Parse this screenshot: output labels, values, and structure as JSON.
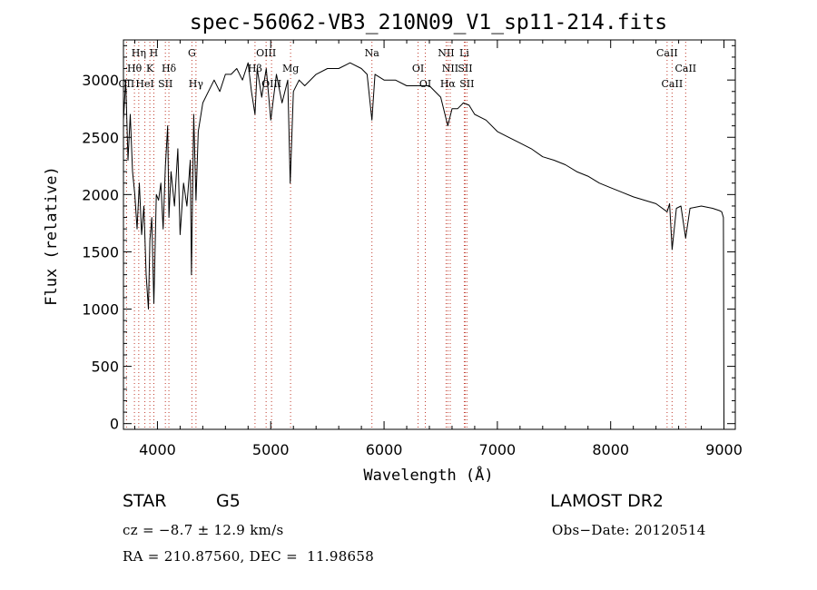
{
  "chart_data": {
    "type": "line",
    "title": "spec-56062-VB3_210N09_V1_sp11-214.fits",
    "xlabel": "Wavelength (Å)",
    "ylabel": "Flux (relative)",
    "xlim": [
      3700,
      9100
    ],
    "ylim": [
      -50,
      3350
    ],
    "x_ticks": [
      4000,
      5000,
      6000,
      7000,
      8000,
      9000
    ],
    "y_ticks": [
      0,
      500,
      1000,
      1500,
      2000,
      2500,
      3000
    ],
    "grid": false,
    "line_color": "#000000",
    "marker_color": "#c0392b",
    "series": [
      {
        "x": [
          3700,
          3720,
          3740,
          3760,
          3780,
          3800,
          3820,
          3840,
          3860,
          3880,
          3900,
          3920,
          3933,
          3950,
          3968,
          3990,
          4010,
          4030,
          4050,
          4070,
          4090,
          4101,
          4120,
          4150,
          4180,
          4200,
          4230,
          4260,
          4290,
          4300,
          4320,
          4340,
          4360,
          4400,
          4450,
          4500,
          4550,
          4600,
          4650,
          4700,
          4750,
          4800,
          4830,
          4861,
          4880,
          4920,
          4960,
          5000,
          5050,
          5100,
          5150,
          5172,
          5200,
          5250,
          5300,
          5400,
          5500,
          5600,
          5700,
          5800,
          5850,
          5893,
          5920,
          6000,
          6100,
          6200,
          6300,
          6400,
          6500,
          6563,
          6600,
          6650,
          6700,
          6750,
          6800,
          6900,
          7000,
          7100,
          7200,
          7300,
          7400,
          7500,
          7600,
          7700,
          7800,
          7900,
          8000,
          8100,
          8200,
          8300,
          8400,
          8498,
          8520,
          8542,
          8580,
          8620,
          8662,
          8700,
          8800,
          8900,
          8960,
          8980,
          8995,
          9000
        ],
        "y": [
          2650,
          3000,
          2300,
          2700,
          2200,
          2000,
          1700,
          2100,
          1650,
          1900,
          1300,
          1000,
          1600,
          1800,
          1050,
          2000,
          1950,
          2100,
          1700,
          2250,
          2600,
          1800,
          2200,
          1900,
          2400,
          1650,
          2100,
          1900,
          2300,
          1300,
          2700,
          1950,
          2550,
          2800,
          2900,
          3000,
          2900,
          3050,
          3050,
          3100,
          3000,
          3150,
          2900,
          2700,
          3100,
          2850,
          3100,
          2650,
          3050,
          2800,
          3000,
          2100,
          2900,
          3000,
          2950,
          3050,
          3100,
          3100,
          3150,
          3100,
          3050,
          2650,
          3050,
          3000,
          3000,
          2950,
          2950,
          2950,
          2850,
          2600,
          2750,
          2750,
          2800,
          2780,
          2700,
          2650,
          2550,
          2500,
          2450,
          2400,
          2330,
          2300,
          2260,
          2200,
          2160,
          2100,
          2060,
          2020,
          1980,
          1950,
          1920,
          1850,
          1920,
          1520,
          1880,
          1900,
          1620,
          1880,
          1900,
          1880,
          1860,
          1850,
          1800,
          0
        ]
      }
    ],
    "line_markers": [
      {
        "label": "Hη",
        "x": 3835,
        "row": 1
      },
      {
        "label": "H",
        "x": 3968,
        "row": 1
      },
      {
        "label": "Hθ",
        "x": 3797,
        "row": 2
      },
      {
        "label": "K",
        "x": 3933,
        "row": 2
      },
      {
        "label": "Hδ",
        "x": 4101,
        "row": 2
      },
      {
        "label": "OII",
        "x": 3727,
        "row": 3
      },
      {
        "label": "HeI",
        "x": 3889,
        "row": 3
      },
      {
        "label": "SII",
        "x": 4070,
        "row": 3
      },
      {
        "label": "G",
        "x": 4304,
        "row": 1
      },
      {
        "label": "Hγ",
        "x": 4340,
        "row": 3
      },
      {
        "label": "OIII",
        "x": 4959,
        "row": 1
      },
      {
        "label": "Hβ",
        "x": 4861,
        "row": 2
      },
      {
        "label": "OIII",
        "x": 5007,
        "row": 3
      },
      {
        "label": "Mg",
        "x": 5175,
        "row": 2
      },
      {
        "label": "Na",
        "x": 5893,
        "row": 1
      },
      {
        "label": "OI",
        "x": 6300,
        "row": 2
      },
      {
        "label": "OI",
        "x": 6364,
        "row": 3
      },
      {
        "label": "NII",
        "x": 6548,
        "row": 1
      },
      {
        "label": "Li",
        "x": 6708,
        "row": 1
      },
      {
        "label": "NII",
        "x": 6584,
        "row": 2
      },
      {
        "label": "SII",
        "x": 6716,
        "row": 2
      },
      {
        "label": "Hα",
        "x": 6563,
        "row": 3
      },
      {
        "label": "SII",
        "x": 6731,
        "row": 3
      },
      {
        "label": "CaII",
        "x": 8498,
        "row": 1
      },
      {
        "label": "CaII",
        "x": 8662,
        "row": 2
      },
      {
        "label": "CaII",
        "x": 8542,
        "row": 3
      }
    ]
  },
  "info": {
    "object_type": "STAR",
    "subclass": "G5",
    "survey": "LAMOST DR2",
    "redshift_line": "cz = −8.7 ± 12.9 km/s",
    "obs_date_line": "Obs−Date: 20120514",
    "coords_line": "RA = 210.87560, DEC =  11.98658"
  }
}
